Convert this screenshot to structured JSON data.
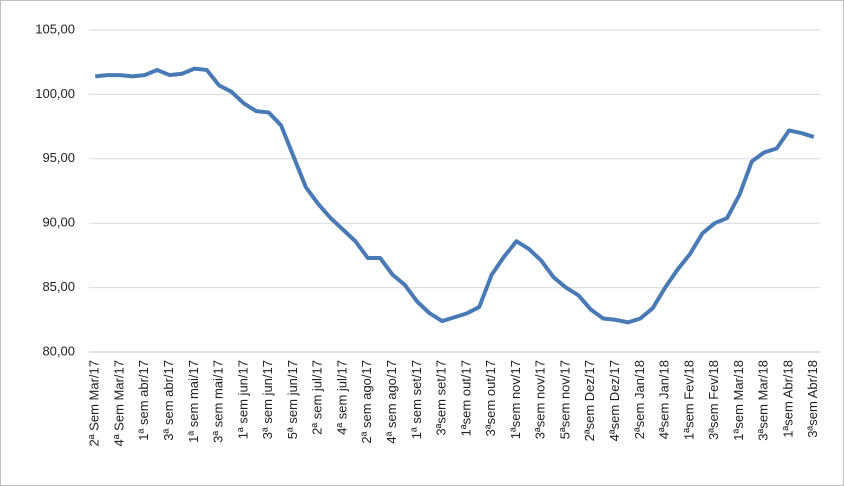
{
  "chart_data": {
    "type": "line",
    "categories": [
      "2ª Sem Mar/17",
      null,
      "4ª Sem Mar/17",
      null,
      "1ª sem abr/17",
      null,
      "3ª sem abr/17",
      null,
      "1ª sem mai/17",
      null,
      "3ª sem mai/17",
      null,
      "1ª sem jun/17",
      null,
      "3ª sem jun/17",
      null,
      "5ª sem jun/17",
      null,
      "2ª sem jul/17",
      null,
      "4ª sem jul/17",
      null,
      "2ª sem ago/17",
      null,
      "4ª sem ago/17",
      null,
      "1ª sem set/17",
      null,
      "3ªsem set/17",
      null,
      "1ªsem out/17",
      null,
      "3ªsem out/17",
      null,
      "1ªsem nov/17",
      null,
      "3ªsem nov/17",
      null,
      "5ªsem nov/17",
      null,
      "2ªsem Dez/17",
      null,
      "4ªsem Dez/17",
      null,
      "2ªsem Jan/18",
      null,
      "4ªsem Jan/18",
      null,
      "1ªsem Fev/18",
      null,
      "3ªsem Fev/18",
      null,
      "1ªsem Mar/18",
      null,
      "3ªsem Mar/18",
      null,
      "1ªsem Abr/18",
      null,
      "3ªsem Abr/18"
    ],
    "series": [
      {
        "color": "#4a7ab5",
        "values": [
          101.4,
          101.5,
          101.5,
          101.4,
          101.5,
          101.9,
          101.5,
          101.6,
          102.0,
          101.9,
          100.7,
          100.2,
          99.3,
          98.7,
          98.6,
          97.6,
          95.2,
          92.8,
          91.5,
          90.4,
          89.5,
          88.6,
          87.3,
          87.3,
          86.0,
          85.2,
          83.9,
          83.0,
          82.4,
          82.7,
          83.0,
          83.5,
          86.0,
          87.4,
          88.6,
          88.0,
          87.1,
          85.8,
          85.0,
          84.4,
          83.3,
          82.6,
          82.5,
          82.3,
          82.6,
          83.4,
          85.0,
          86.4,
          87.6,
          89.2,
          90.0,
          90.4,
          92.2,
          94.8,
          95.5,
          95.8,
          97.2,
          97.0,
          96.7
        ]
      }
    ],
    "ylim": [
      80,
      105
    ],
    "yticks": [
      {
        "value": 80,
        "label": "80,00"
      },
      {
        "value": 85,
        "label": "85,00"
      },
      {
        "value": 90,
        "label": "90,00"
      },
      {
        "value": 95,
        "label": "95,00"
      },
      {
        "value": 100,
        "label": "100,00"
      },
      {
        "value": 105,
        "label": "105,00"
      }
    ],
    "grid": true
  }
}
